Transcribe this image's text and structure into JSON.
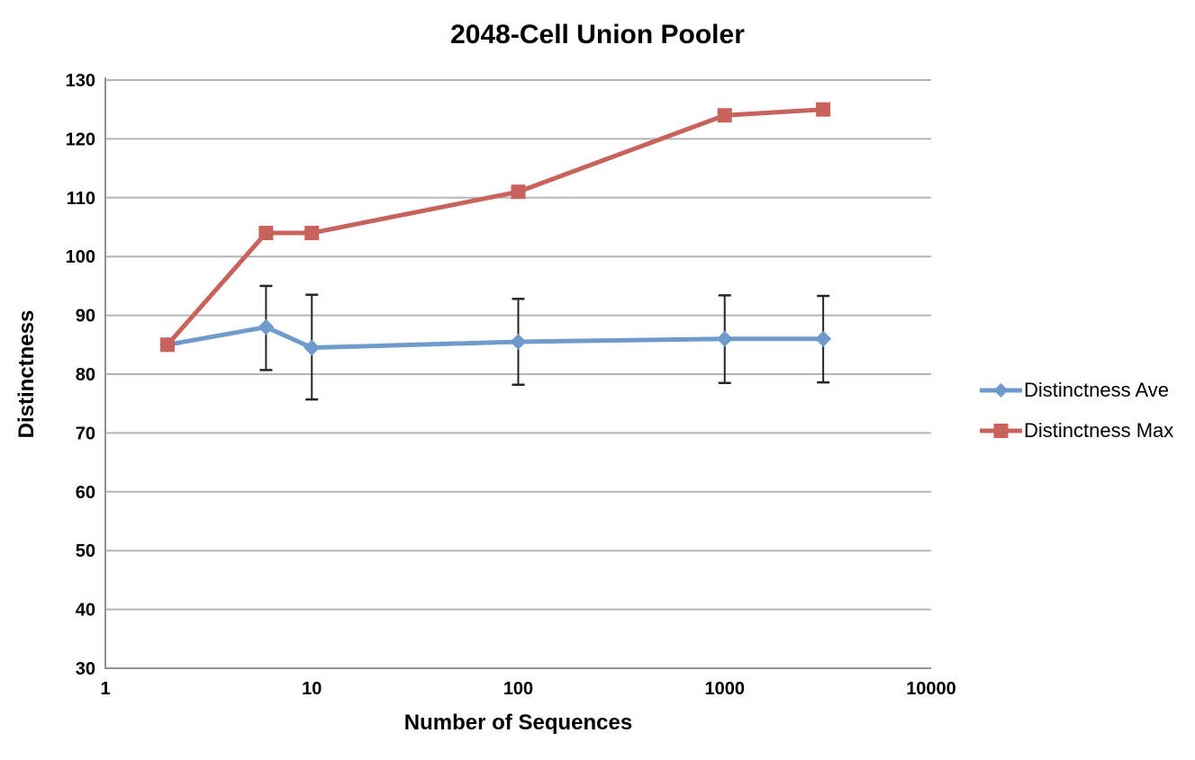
{
  "title": "2048-Cell Union Pooler",
  "chart_data": {
    "type": "line",
    "title": "2048-Cell Union Pooler",
    "xlabel": "Number of Sequences",
    "ylabel": "Distinctness",
    "x_scale": "log",
    "xlim": [
      1,
      10000
    ],
    "x_ticks": [
      1,
      10,
      100,
      1000,
      10000
    ],
    "ylim": [
      30,
      130
    ],
    "y_tick_step": 10,
    "grid": "horizontal-only",
    "legend_position": "right",
    "x": [
      2,
      6,
      10,
      100,
      1000,
      3000
    ],
    "series": [
      {
        "name": "Distinctness Ave",
        "marker": "diamond",
        "color": "#6F9BCC",
        "values": [
          85,
          88,
          84.5,
          85.5,
          86,
          86
        ],
        "error_low": [
          null,
          80.7,
          75.7,
          78.2,
          78.5,
          78.6
        ],
        "error_high": [
          null,
          95.0,
          93.5,
          92.8,
          93.4,
          93.3
        ]
      },
      {
        "name": "Distinctness Max",
        "marker": "square",
        "color": "#C8625C",
        "values": [
          85,
          104,
          104,
          111,
          124,
          125
        ]
      }
    ],
    "colors": {
      "gridline": "#B5B5B5",
      "axis_line": "#929292",
      "error_bar": "#262626",
      "tick_label": "#000000"
    }
  }
}
